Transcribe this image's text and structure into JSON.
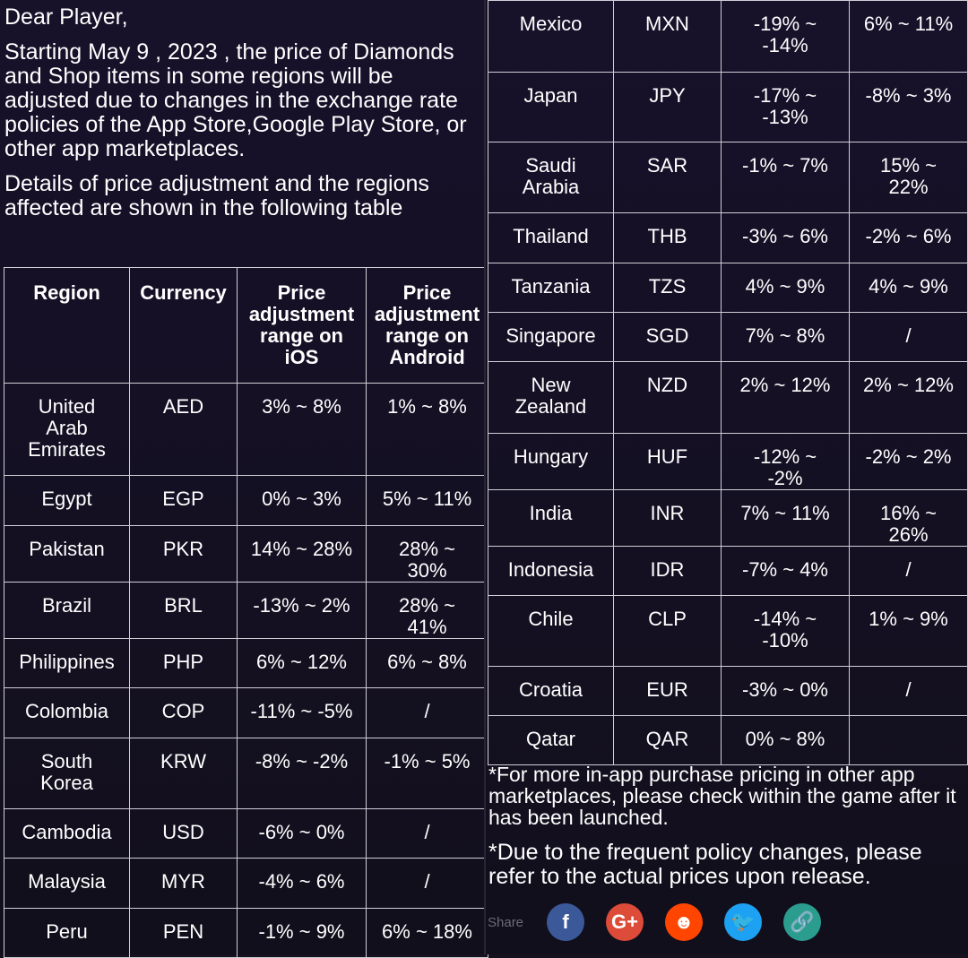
{
  "intro": {
    "greeting": "Dear Player,",
    "paragraph1": "Starting May 9 , 2023 , the price of Diamonds and Shop items in some regions will be adjusted due to changes in the exchange rate policies of the App Store,Google Play Store, or other app marketplaces.",
    "paragraph2": "Details of price adjustment and the regions affected are shown in the following table"
  },
  "table": {
    "headers": [
      "Region",
      "Currency",
      "Price adjustment range on iOS",
      "Price adjustment range on Android"
    ],
    "left_rows": [
      [
        "United Arab Emirates",
        "AED",
        "3% ~ 8%",
        "1% ~ 8%"
      ],
      [
        "Egypt",
        "EGP",
        "0% ~ 3%",
        "5% ~ 11%"
      ],
      [
        "Pakistan",
        "PKR",
        "14% ~ 28%",
        "28% ~ 30%"
      ],
      [
        "Brazil",
        "BRL",
        "-13% ~ 2%",
        "28% ~ 41%"
      ],
      [
        "Philippines",
        "PHP",
        "6% ~ 12%",
        "6% ~ 8%"
      ],
      [
        "Colombia",
        "COP",
        "-11% ~ -5%",
        "/"
      ],
      [
        "South Korea",
        "KRW",
        "-8% ~ -2%",
        "-1% ~ 5%"
      ],
      [
        "Cambodia",
        "USD",
        "-6% ~ 0%",
        "/"
      ],
      [
        "Malaysia",
        "MYR",
        "-4% ~ 6%",
        "/"
      ],
      [
        "Peru",
        "PEN",
        "-1% ~ 9%",
        "6% ~ 18%"
      ]
    ],
    "right_rows": [
      [
        "Mexico",
        "MXN",
        "-19% ~ -14%",
        "6% ~ 11%"
      ],
      [
        "Japan",
        "JPY",
        "-17% ~ -13%",
        "-8% ~ 3%"
      ],
      [
        "Saudi Arabia",
        "SAR",
        "-1% ~ 7%",
        "15% ~ 22%"
      ],
      [
        "Thailand",
        "THB",
        "-3% ~ 6%",
        "-2% ~ 6%"
      ],
      [
        "Tanzania",
        "TZS",
        "4% ~ 9%",
        "4% ~ 9%"
      ],
      [
        "Singapore",
        "SGD",
        "7% ~ 8%",
        "/"
      ],
      [
        "New Zealand",
        "NZD",
        "2% ~ 12%",
        "2% ~ 12%"
      ],
      [
        "Hungary",
        "HUF",
        "-12% ~ -2%",
        "-2% ~ 2%"
      ],
      [
        "India",
        "INR",
        "7% ~ 11%",
        "16% ~ 26%"
      ],
      [
        "Indonesia",
        "IDR",
        "-7% ~ 4%",
        "/"
      ],
      [
        "Chile",
        "CLP",
        "-14% ~ -10%",
        "1% ~ 9%"
      ],
      [
        "Croatia",
        "EUR",
        "-3% ~ 0%",
        "/"
      ],
      [
        "Qatar",
        "QAR",
        "0% ~ 8%",
        ""
      ]
    ]
  },
  "notes": [
    "*For more in-app purchase pricing in other app marketplaces, please check within the game after it has been launched.",
    "*Due to the frequent policy changes, please refer to the actual prices upon release."
  ],
  "share": {
    "label": "Share",
    "buttons": [
      {
        "name": "facebook",
        "glyph": "f",
        "color": "#3b5998"
      },
      {
        "name": "google-plus",
        "glyph": "G+",
        "color": "#dd4b39"
      },
      {
        "name": "reddit",
        "glyph": "☻",
        "color": "#ff4500"
      },
      {
        "name": "twitter",
        "glyph": "🐦",
        "color": "#1da1f2"
      },
      {
        "name": "copy-link",
        "glyph": "🔗",
        "color": "#2a9d8f"
      }
    ]
  }
}
